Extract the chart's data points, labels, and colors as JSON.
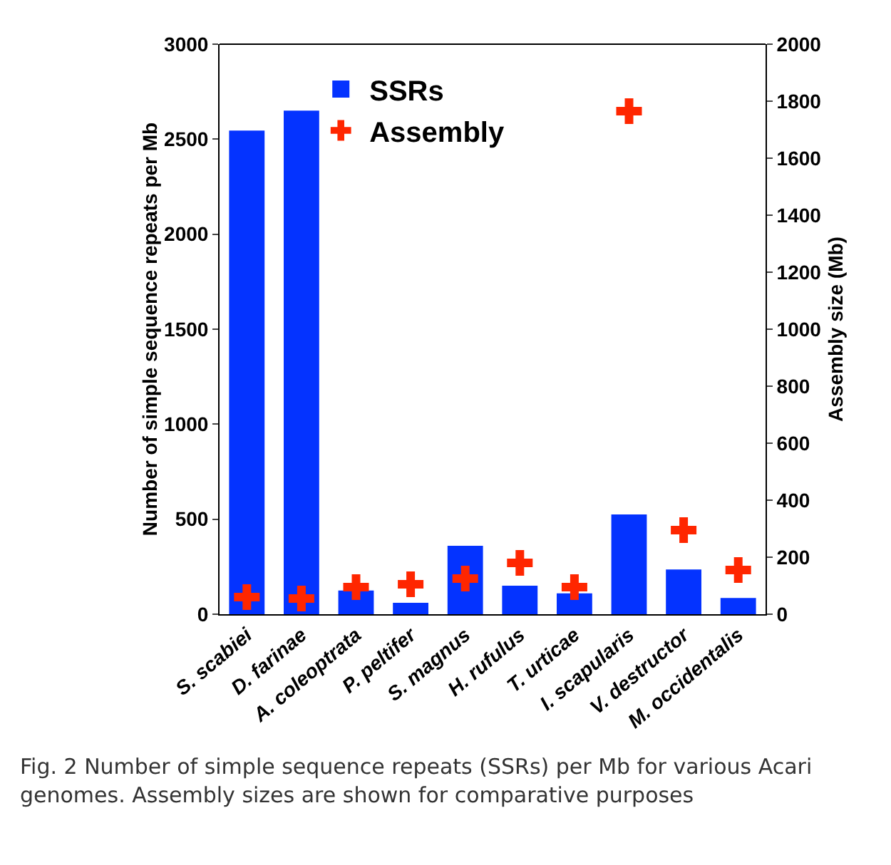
{
  "chart_data": {
    "type": "bar",
    "categories": [
      "S. scabiei",
      "D. farinae",
      "A. coleoptrata",
      "P. peltifer",
      "S. magnus",
      "H. rufulus",
      "T. urticae",
      "I. scapularis",
      "V. destructor",
      "M. occidentalis"
    ],
    "series": [
      {
        "name": "SSRs",
        "color": "#0433ff",
        "values": [
          2545,
          2650,
          125,
          60,
          360,
          150,
          110,
          525,
          235,
          85
        ]
      },
      {
        "name": "Assembly",
        "type": "scatter",
        "axis": "y2",
        "color": "#ff2600",
        "marker": "cross",
        "values": [
          60,
          55,
          95,
          105,
          125,
          180,
          95,
          1765,
          295,
          155
        ]
      }
    ],
    "ylabel": "Number of simple sequence repeats per Mb",
    "y2label": "Assembly size (Mb)",
    "ylim": [
      0,
      3000
    ],
    "yticks": [
      0,
      500,
      1000,
      1500,
      2000,
      2500,
      3000
    ],
    "y2lim": [
      0,
      2000
    ],
    "y2ticks": [
      0,
      200,
      400,
      600,
      800,
      1000,
      1200,
      1400,
      1600,
      1800,
      2000
    ],
    "grid": false,
    "legend": "top left",
    "annotations": [
      "Fig. 2 Number of simple sequence repeats (SSRs) per Mb for various Acari genomes. Assembly sizes are shown for comparative purposes"
    ]
  }
}
